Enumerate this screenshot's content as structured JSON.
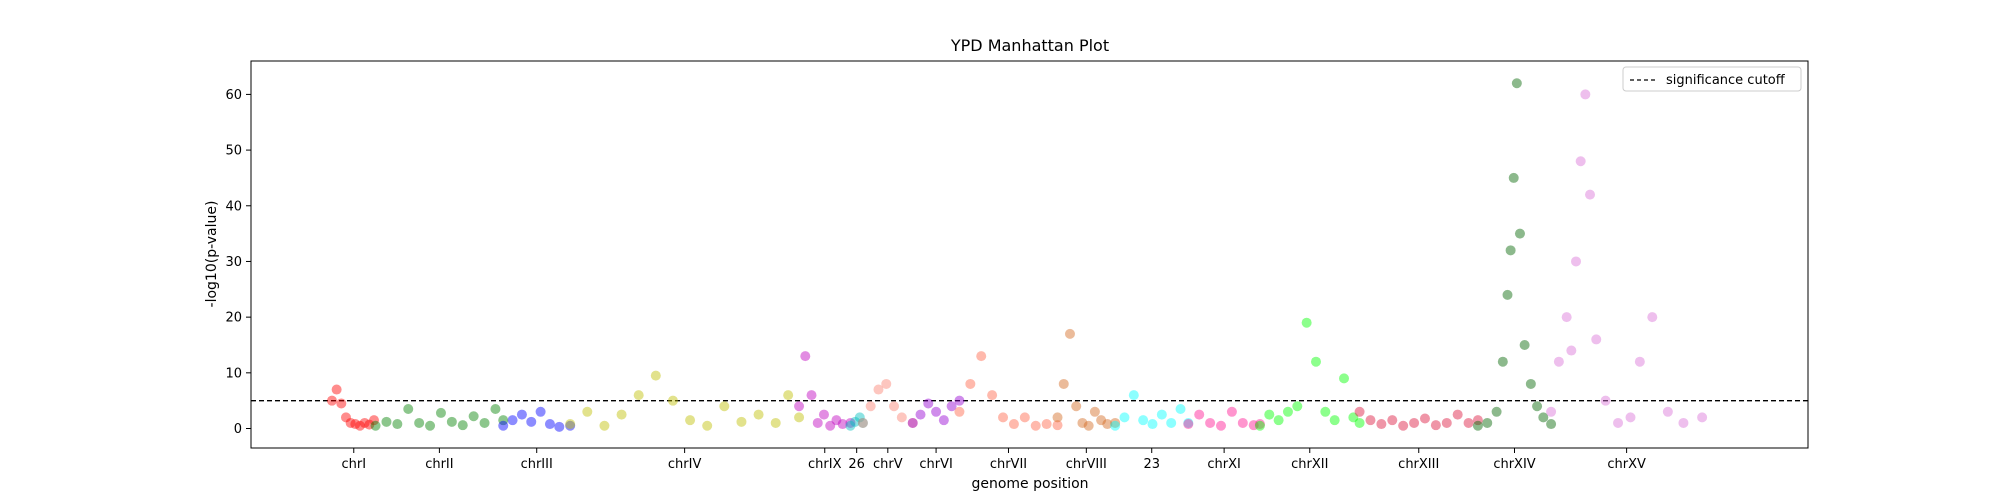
{
  "chart_data": {
    "type": "scatter",
    "title": "YPD Manhattan Plot",
    "xlabel": "genome position",
    "ylabel": "-log10(p-value)",
    "ylim": [
      -3.5,
      66
    ],
    "yticks": [
      0,
      10,
      20,
      30,
      40,
      50,
      60
    ],
    "threshold": {
      "value": 5,
      "label": "significance cutoff"
    },
    "legend": {
      "position": "top-right",
      "label": "significance cutoff"
    },
    "grid": false,
    "xlim": [
      0,
      1000
    ],
    "chromosomes": [
      {
        "label": "chrI",
        "start": 52,
        "end": 80,
        "color": "#ff0000"
      },
      {
        "label": "chrII",
        "start": 80,
        "end": 162,
        "color": "#008000"
      },
      {
        "label": "chrIII",
        "start": 162,
        "end": 205,
        "color": "#0000ff"
      },
      {
        "label": "chrIV",
        "start": 205,
        "end": 352,
        "color": "#bfbf00"
      },
      {
        "label": "chrIX",
        "start": 352,
        "end": 385,
        "color": "#bf00bf"
      },
      {
        "label": "26",
        "start": 385,
        "end": 393,
        "color": "#00bfbf"
      },
      {
        "label": "chrV",
        "start": 393,
        "end": 425,
        "color": "#fa8072"
      },
      {
        "label": "chrVI",
        "start": 425,
        "end": 455,
        "color": "#9400d3"
      },
      {
        "label": "chrVII",
        "start": 455,
        "end": 518,
        "color": "#ff6347"
      },
      {
        "label": "chrVIII",
        "start": 518,
        "end": 555,
        "color": "#d2691e"
      },
      {
        "label": "23",
        "start": 555,
        "end": 602,
        "color": "#00ffff"
      },
      {
        "label": "chrXI",
        "start": 602,
        "end": 648,
        "color": "#ff1493"
      },
      {
        "label": "chrXII",
        "start": 648,
        "end": 712,
        "color": "#00ff00"
      },
      {
        "label": "chrXIII",
        "start": 712,
        "end": 788,
        "color": "#dc143c"
      },
      {
        "label": "chrXIV",
        "start": 788,
        "end": 835,
        "color": "#006400"
      },
      {
        "label": "chrXV",
        "start": 835,
        "end": 932,
        "color": "#da70d6"
      }
    ],
    "series": [
      {
        "name": "chrI",
        "x": [
          52,
          55,
          58,
          61,
          64,
          67,
          70,
          73,
          76,
          79
        ],
        "y": [
          5,
          7,
          4.5,
          2,
          1,
          0.8,
          0.5,
          1,
          0.7,
          1.5
        ]
      },
      {
        "name": "chrII",
        "x": [
          80,
          87,
          94,
          101,
          108,
          115,
          122,
          129,
          136,
          143,
          150,
          157,
          162
        ],
        "y": [
          0.5,
          1.2,
          0.8,
          3.5,
          1.0,
          0.5,
          2.8,
          1.2,
          0.6,
          2.2,
          1.0,
          3.5,
          1.5
        ]
      },
      {
        "name": "chrIII",
        "x": [
          162,
          168,
          174,
          180,
          186,
          192,
          198,
          205
        ],
        "y": [
          0.5,
          1.5,
          2.5,
          1.2,
          3,
          0.8,
          0.3,
          0.5
        ]
      },
      {
        "name": "chrIV",
        "x": [
          205,
          216,
          227,
          238,
          249,
          260,
          271,
          282,
          293,
          304,
          315,
          326,
          337,
          345,
          352
        ],
        "y": [
          0.8,
          3,
          0.5,
          2.5,
          6,
          9.5,
          5,
          1.5,
          0.5,
          4,
          1.2,
          2.5,
          1,
          6,
          2
        ]
      },
      {
        "name": "chrIX",
        "x": [
          352,
          356,
          360,
          364,
          368,
          372,
          376,
          380,
          385
        ],
        "y": [
          4,
          13,
          6,
          1,
          2.5,
          0.5,
          1.5,
          0.8,
          1
        ]
      },
      {
        "name": "26",
        "x": [
          385,
          388,
          391,
          393
        ],
        "y": [
          0.5,
          1.2,
          2,
          1
        ]
      },
      {
        "name": "chrV",
        "x": [
          393,
          398,
          403,
          408,
          413,
          418,
          425
        ],
        "y": [
          1,
          4,
          7,
          8,
          4,
          2,
          1
        ]
      },
      {
        "name": "chrVI",
        "x": [
          425,
          430,
          435,
          440,
          445,
          450,
          455
        ],
        "y": [
          1,
          2.5,
          4.5,
          3,
          1.5,
          4,
          5
        ]
      },
      {
        "name": "chrVII",
        "x": [
          455,
          462,
          469,
          476,
          483,
          490,
          497,
          504,
          511,
          518
        ],
        "y": [
          3,
          8,
          13,
          6,
          2,
          0.8,
          2,
          0.5,
          0.8,
          0.6
        ]
      },
      {
        "name": "chrVIII",
        "x": [
          518,
          522,
          526,
          530,
          534,
          538,
          542,
          546,
          550,
          555
        ],
        "y": [
          2,
          8,
          17,
          4,
          1,
          0.5,
          3,
          1.5,
          0.8,
          1
        ]
      },
      {
        "name": "23",
        "x": [
          555,
          561,
          567,
          573,
          579,
          585,
          591,
          597,
          602
        ],
        "y": [
          0.5,
          2,
          6,
          1.5,
          0.8,
          2.5,
          1,
          3.5,
          1
        ]
      },
      {
        "name": "chrXI",
        "x": [
          602,
          609,
          616,
          623,
          630,
          637,
          644,
          648
        ],
        "y": [
          0.8,
          2.5,
          1,
          0.5,
          3,
          1,
          0.6,
          0.8
        ]
      },
      {
        "name": "chrXII",
        "x": [
          648,
          654,
          660,
          666,
          672,
          678,
          684,
          690,
          696,
          702,
          708,
          712
        ],
        "y": [
          0.5,
          2.5,
          1.5,
          3,
          4,
          19,
          12,
          3,
          1.5,
          9,
          2,
          1
        ]
      },
      {
        "name": "chrXIII",
        "x": [
          712,
          719,
          726,
          733,
          740,
          747,
          754,
          761,
          768,
          775,
          782,
          788
        ],
        "y": [
          3,
          1.5,
          0.8,
          1.5,
          0.5,
          1,
          1.8,
          0.6,
          1,
          2.5,
          1,
          1.5
        ]
      },
      {
        "name": "chrXIV",
        "x": [
          788,
          794,
          800,
          804,
          807,
          809,
          811,
          813,
          815,
          818,
          822,
          826,
          830,
          835
        ],
        "y": [
          0.5,
          1,
          3,
          12,
          24,
          32,
          45,
          62,
          35,
          15,
          8,
          4,
          2,
          0.8
        ]
      },
      {
        "name": "chrXV",
        "x": [
          835,
          840,
          845,
          848,
          851,
          854,
          857,
          860,
          864,
          870,
          878,
          886,
          892,
          900,
          910,
          920,
          932
        ],
        "y": [
          3,
          12,
          20,
          14,
          30,
          48,
          60,
          42,
          16,
          5,
          1,
          2,
          12,
          20,
          3,
          1,
          2
        ]
      }
    ]
  }
}
